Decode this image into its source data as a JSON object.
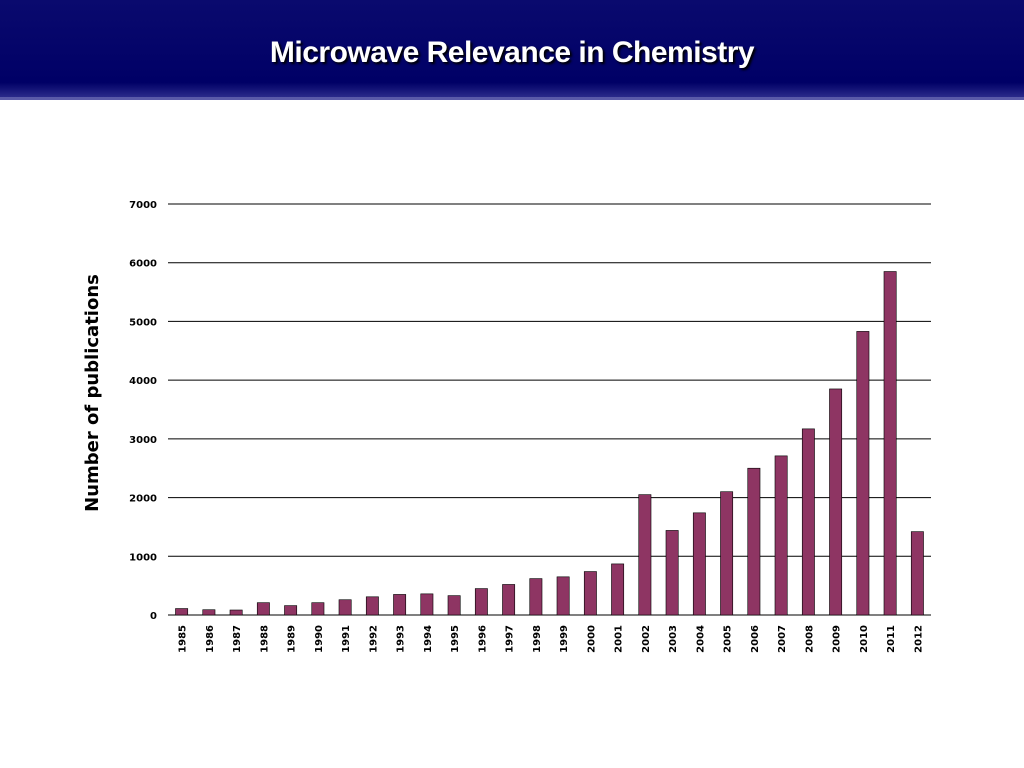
{
  "slide": {
    "title": "Microwave Relevance in Chemistry"
  },
  "colors": {
    "banner": "#000066",
    "bar_fill": "#8e3563",
    "bar_stroke": "#000000",
    "gridline": "#000000"
  },
  "chart_data": {
    "type": "bar",
    "title": "",
    "xlabel": "",
    "ylabel": "Number of publications",
    "ylim": [
      0,
      7000
    ],
    "yticks": [
      0,
      1000,
      2000,
      3000,
      4000,
      5000,
      6000,
      7000
    ],
    "grid": true,
    "legend": "none",
    "categories": [
      "1985",
      "1986",
      "1987",
      "1988",
      "1989",
      "1990",
      "1991",
      "1992",
      "1993",
      "1994",
      "1995",
      "1996",
      "1997",
      "1998",
      "1999",
      "2000",
      "2001",
      "2002",
      "2003",
      "2004",
      "2005",
      "2006",
      "2007",
      "2008",
      "2009",
      "2010",
      "2011",
      "2012"
    ],
    "series": [
      {
        "values": [
          110,
          90,
          85,
          210,
          160,
          210,
          260,
          310,
          350,
          360,
          330,
          450,
          520,
          620,
          650,
          740,
          870,
          2050,
          1440,
          1740,
          2100,
          2500,
          2710,
          3170,
          3850,
          4830,
          5850,
          1420
        ]
      }
    ]
  }
}
